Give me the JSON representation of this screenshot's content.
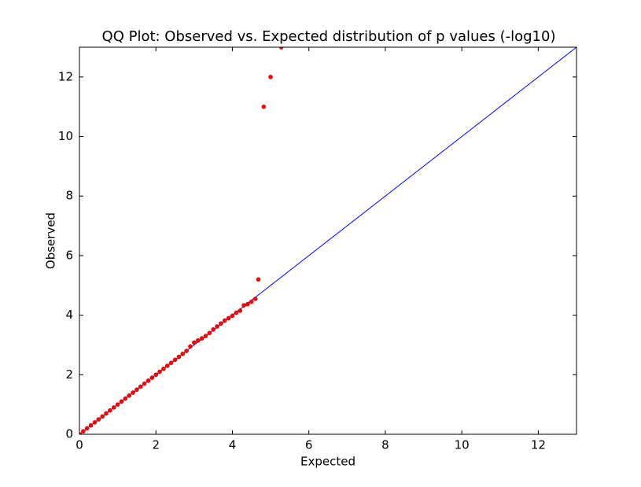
{
  "chart_data": {
    "type": "scatter",
    "title": "QQ Plot: Observed vs. Expected distribution of p values (-log10)",
    "x_label": "Expected",
    "y_label": "Observed",
    "xlim": [
      0,
      13
    ],
    "ylim": [
      0,
      13
    ],
    "xticks": [
      0,
      2,
      4,
      6,
      8,
      10,
      12
    ],
    "yticks": [
      0,
      2,
      4,
      6,
      8,
      10,
      12
    ],
    "color": "#ff0000",
    "reference_line": {
      "x": [
        0,
        13
      ],
      "y": [
        0,
        13
      ],
      "color": "#0000ff"
    },
    "x": [
      0,
      0.1,
      0.2,
      0.3,
      0.4,
      0.5,
      0.6,
      0.7,
      0.8,
      0.9,
      1.0,
      1.1,
      1.2,
      1.3,
      1.4,
      1.5,
      1.6,
      1.7,
      1.8,
      1.9,
      2.0,
      2.1,
      2.2,
      2.3,
      2.4,
      2.5,
      2.6,
      2.7,
      2.8,
      2.9,
      3.0,
      3.1,
      3.2,
      3.3,
      3.4,
      3.5,
      3.6,
      3.7,
      3.8,
      3.9,
      4.0,
      4.1,
      4.2,
      4.3,
      4.4,
      4.5,
      4.6,
      4.68,
      4.82,
      5.0,
      5.28
    ],
    "values": [
      0,
      0.1,
      0.2,
      0.3,
      0.4,
      0.5,
      0.6,
      0.7,
      0.8,
      0.9,
      1.0,
      1.1,
      1.2,
      1.3,
      1.4,
      1.5,
      1.6,
      1.7,
      1.8,
      1.9,
      2.0,
      2.1,
      2.2,
      2.3,
      2.4,
      2.5,
      2.6,
      2.7,
      2.8,
      2.95,
      3.08,
      3.15,
      3.22,
      3.3,
      3.4,
      3.52,
      3.62,
      3.72,
      3.82,
      3.9,
      3.98,
      4.08,
      4.15,
      4.33,
      4.37,
      4.45,
      4.55,
      5.2,
      11.0,
      12.0,
      13.0
    ]
  }
}
